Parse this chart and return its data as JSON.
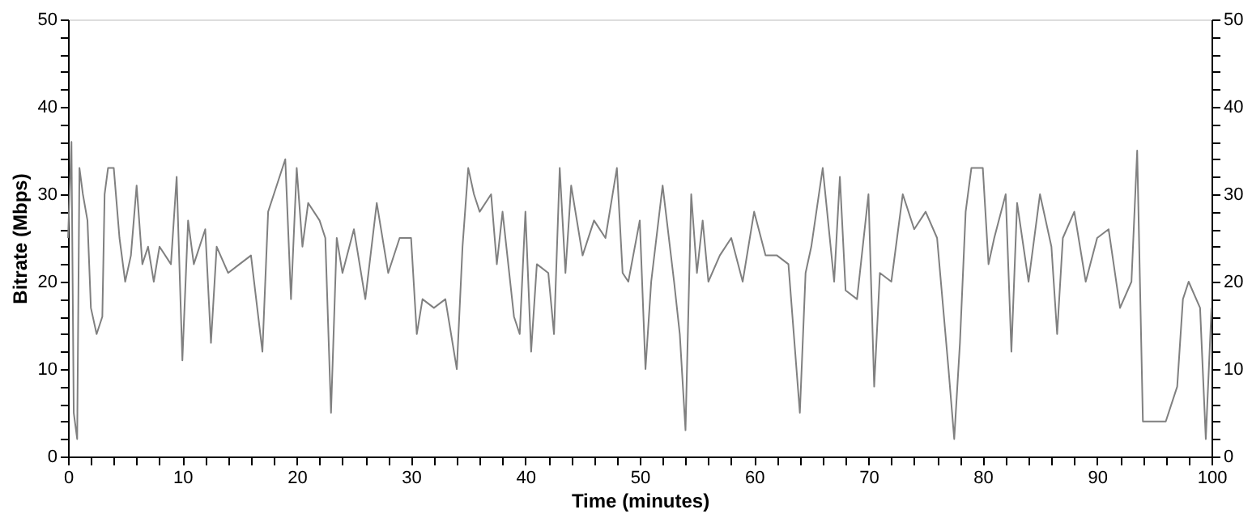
{
  "chart_data": {
    "type": "line",
    "xlabel": "Time (minutes)",
    "ylabel": "Bitrate (Mbps)",
    "x": [
      0,
      0.3,
      0.5,
      0.8,
      1,
      1.3,
      1.7,
      2,
      2.5,
      3,
      3.2,
      3.5,
      4,
      4.5,
      5,
      5.5,
      6,
      6.5,
      7,
      7.5,
      8,
      9,
      9.5,
      10,
      10.5,
      11,
      12,
      12.5,
      13,
      14,
      15,
      16,
      17,
      17.5,
      18,
      19,
      19.5,
      20,
      20.5,
      21,
      22,
      22.5,
      23,
      23.5,
      24,
      25,
      26,
      27,
      28,
      29,
      30,
      30.5,
      31,
      32,
      33,
      34,
      34.5,
      35,
      35.5,
      36,
      37,
      37.5,
      38,
      39,
      39.5,
      40,
      40.5,
      41,
      42,
      42.5,
      43,
      43.5,
      44,
      45,
      46,
      47,
      48,
      48.5,
      49,
      50,
      50.5,
      51,
      52,
      53,
      53.5,
      54,
      54.5,
      55,
      55.5,
      56,
      57,
      58,
      59,
      60,
      61,
      62,
      63,
      64,
      64.5,
      65,
      66,
      67,
      67.5,
      68,
      69,
      70,
      70.5,
      71,
      72,
      73,
      74,
      75,
      76,
      77,
      77.5,
      78,
      78.5,
      79,
      80,
      80.5,
      81,
      82,
      82.5,
      83,
      84,
      85,
      86,
      86.5,
      87,
      88,
      89,
      90,
      91,
      92,
      93,
      93.5,
      94,
      95,
      96,
      97,
      97.5,
      98,
      99,
      99.5,
      100
    ],
    "series": [
      {
        "color": "#808080",
        "values": [
          25,
          36,
          5,
          2,
          33,
          30,
          27,
          17,
          14,
          16,
          30,
          33,
          33,
          25,
          20,
          23,
          31,
          22,
          24,
          20,
          24,
          22,
          32,
          11,
          27,
          22,
          26,
          13,
          24,
          21,
          22,
          23,
          12,
          28,
          30,
          34,
          18,
          33,
          24,
          29,
          27,
          25,
          5,
          25,
          21,
          26,
          18,
          29,
          21,
          25,
          25,
          14,
          18,
          17,
          18,
          10,
          24,
          33,
          30,
          28,
          30,
          22,
          28,
          16,
          14,
          28,
          12,
          22,
          21,
          14,
          33,
          21,
          31,
          23,
          27,
          25,
          33,
          21,
          20,
          27,
          10,
          20,
          31,
          20,
          14,
          3,
          30,
          21,
          27,
          20,
          23,
          25,
          20,
          28,
          23,
          23,
          22,
          5,
          21,
          24,
          33,
          20,
          32,
          19,
          18,
          30,
          8,
          21,
          20,
          30,
          26,
          28,
          25,
          10,
          2,
          13,
          28,
          33,
          33,
          22,
          25,
          30,
          12,
          29,
          20,
          30,
          24,
          14,
          25,
          28,
          20,
          25,
          26,
          17,
          20,
          35,
          4,
          4,
          4,
          8,
          18,
          20,
          17,
          2,
          17
        ]
      }
    ],
    "xlim": [
      0,
      100
    ],
    "ylim": [
      0,
      50
    ],
    "y2lim": [
      0,
      50
    ],
    "xticks": [
      0,
      {
        "value": 2,
        "label": null
      },
      {
        "value": 4,
        "label": null
      },
      {
        "value": 6,
        "label": null
      },
      {
        "value": 8,
        "label": null
      },
      10,
      {
        "value": 12,
        "label": null
      },
      {
        "value": 14,
        "label": null
      },
      {
        "value": 16,
        "label": null
      },
      {
        "value": 18,
        "label": null
      },
      20,
      {
        "value": 22,
        "label": null
      },
      {
        "value": 24,
        "label": null
      },
      {
        "value": 26,
        "label": null
      },
      {
        "value": 28,
        "label": null
      },
      30,
      {
        "value": 32,
        "label": null
      },
      {
        "value": 34,
        "label": null
      },
      {
        "value": 36,
        "label": null
      },
      {
        "value": 38,
        "label": null
      },
      40,
      {
        "value": 42,
        "label": null
      },
      {
        "value": 44,
        "label": null
      },
      {
        "value": 46,
        "label": null
      },
      {
        "value": 48,
        "label": null
      },
      50,
      {
        "value": 52,
        "label": null
      },
      {
        "value": 54,
        "label": null
      },
      {
        "value": 56,
        "label": null
      },
      {
        "value": 58,
        "label": null
      },
      60,
      {
        "value": 62,
        "label": null
      },
      {
        "value": 64,
        "label": null
      },
      {
        "value": 66,
        "label": null
      },
      {
        "value": 68,
        "label": null
      },
      70,
      {
        "value": 72,
        "label": null
      },
      {
        "value": 74,
        "label": null
      },
      {
        "value": 76,
        "label": null
      },
      {
        "value": 78,
        "label": null
      },
      80,
      {
        "value": 82,
        "label": null
      },
      {
        "value": 84,
        "label": null
      },
      {
        "value": 86,
        "label": null
      },
      {
        "value": 88,
        "label": null
      },
      90,
      {
        "value": 92,
        "label": null
      },
      {
        "value": 94,
        "label": null
      },
      {
        "value": 96,
        "label": null
      },
      {
        "value": 98,
        "label": null
      },
      100
    ],
    "yticks": [
      0,
      {
        "value": 2,
        "label": null
      },
      {
        "value": 4,
        "label": null
      },
      {
        "value": 6,
        "label": null
      },
      {
        "value": 8,
        "label": null
      },
      10,
      {
        "value": 12,
        "label": null
      },
      {
        "value": 14,
        "label": null
      },
      {
        "value": 16,
        "label": null
      },
      {
        "value": 18,
        "label": null
      },
      20,
      {
        "value": 22,
        "label": null
      },
      {
        "value": 24,
        "label": null
      },
      {
        "value": 26,
        "label": null
      },
      {
        "value": 28,
        "label": null
      },
      30,
      {
        "value": 32,
        "label": null
      },
      {
        "value": 34,
        "label": null
      },
      {
        "value": 36,
        "label": null
      },
      {
        "value": 38,
        "label": null
      },
      40,
      {
        "value": 42,
        "label": null
      },
      {
        "value": 44,
        "label": null
      },
      {
        "value": 46,
        "label": null
      },
      {
        "value": 48,
        "label": null
      },
      50
    ],
    "y2ticks": [
      0,
      {
        "value": 2,
        "label": null
      },
      {
        "value": 4,
        "label": null
      },
      {
        "value": 6,
        "label": null
      },
      {
        "value": 8,
        "label": null
      },
      10,
      {
        "value": 12,
        "label": null
      },
      {
        "value": 14,
        "label": null
      },
      {
        "value": 16,
        "label": null
      },
      {
        "value": 18,
        "label": null
      },
      20,
      {
        "value": 22,
        "label": null
      },
      {
        "value": 24,
        "label": null
      },
      {
        "value": 26,
        "label": null
      },
      {
        "value": 28,
        "label": null
      },
      30,
      {
        "value": 32,
        "label": null
      },
      {
        "value": 34,
        "label": null
      },
      {
        "value": 36,
        "label": null
      },
      {
        "value": 38,
        "label": null
      },
      40,
      {
        "value": 42,
        "label": null
      },
      {
        "value": 44,
        "label": null
      },
      {
        "value": 46,
        "label": null
      },
      {
        "value": 48,
        "label": null
      },
      50
    ],
    "grid": false,
    "line_style": "solid"
  }
}
